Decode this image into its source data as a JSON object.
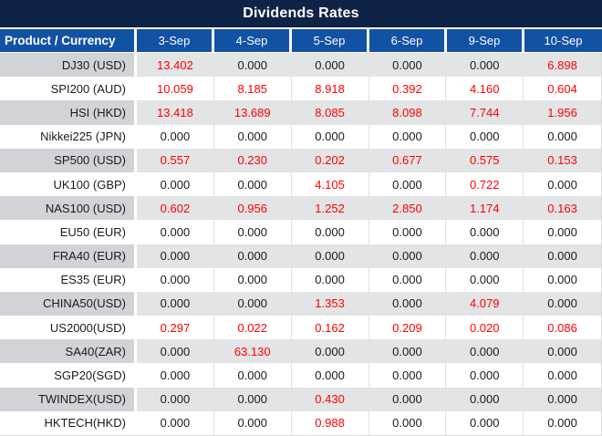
{
  "colors": {
    "title_bg": "#0f2347",
    "title_text": "#ffffff",
    "header_bg": "#1252a4",
    "header_text": "#ffffff",
    "row_bg": "#ffffff",
    "row_product_alt_bg": "#d1d3d6",
    "row_value_alt_bg": "#e3e4e6",
    "value_red": "#ff0000",
    "value_black": "#1a1a1a",
    "grid_line": "#e0e0e0",
    "edge_line": "#d9d9d9"
  },
  "chart_data": {
    "type": "table",
    "title": "Dividends Rates",
    "columns": [
      "Product / Currency",
      "3-Sep",
      "4-Sep",
      "5-Sep",
      "6-Sep",
      "9-Sep",
      "10-Sep"
    ],
    "rows": [
      {
        "product": "DJ30 (USD)",
        "values": [
          "13.402",
          "0.000",
          "0.000",
          "0.000",
          "0.000",
          "6.898"
        ],
        "red": [
          true,
          false,
          false,
          false,
          false,
          true
        ]
      },
      {
        "product": "SPI200 (AUD)",
        "values": [
          "10.059",
          "8.185",
          "8.918",
          "0.392",
          "4.160",
          "0.604"
        ],
        "red": [
          true,
          true,
          true,
          true,
          true,
          true
        ]
      },
      {
        "product": "HSI (HKD)",
        "values": [
          "13.418",
          "13.689",
          "8.085",
          "8.098",
          "7.744",
          "1.956"
        ],
        "red": [
          true,
          true,
          true,
          true,
          true,
          true
        ]
      },
      {
        "product": "Nikkei225 (JPN)",
        "values": [
          "0.000",
          "0.000",
          "0.000",
          "0.000",
          "0.000",
          "0.000"
        ],
        "red": [
          false,
          false,
          false,
          false,
          false,
          false
        ]
      },
      {
        "product": "SP500 (USD)",
        "values": [
          "0.557",
          "0.230",
          "0.202",
          "0.677",
          "0.575",
          "0.153"
        ],
        "red": [
          true,
          true,
          true,
          true,
          true,
          true
        ]
      },
      {
        "product": "UK100 (GBP)",
        "values": [
          "0.000",
          "0.000",
          "4.105",
          "0.000",
          "0.722",
          "0.000"
        ],
        "red": [
          false,
          false,
          true,
          false,
          true,
          false
        ]
      },
      {
        "product": "NAS100 (USD)",
        "values": [
          "0.602",
          "0.956",
          "1.252",
          "2.850",
          "1.174",
          "0.163"
        ],
        "red": [
          true,
          true,
          true,
          true,
          true,
          true
        ]
      },
      {
        "product": "EU50 (EUR)",
        "values": [
          "0.000",
          "0.000",
          "0.000",
          "0.000",
          "0.000",
          "0.000"
        ],
        "red": [
          false,
          false,
          false,
          false,
          false,
          false
        ]
      },
      {
        "product": "FRA40 (EUR)",
        "values": [
          "0.000",
          "0.000",
          "0.000",
          "0.000",
          "0.000",
          "0.000"
        ],
        "red": [
          false,
          false,
          false,
          false,
          false,
          false
        ]
      },
      {
        "product": "ES35 (EUR)",
        "values": [
          "0.000",
          "0.000",
          "0.000",
          "0.000",
          "0.000",
          "0.000"
        ],
        "red": [
          false,
          false,
          false,
          false,
          false,
          false
        ]
      },
      {
        "product": "CHINA50(USD)",
        "values": [
          "0.000",
          "0.000",
          "1.353",
          "0.000",
          "4.079",
          "0.000"
        ],
        "red": [
          false,
          false,
          true,
          false,
          true,
          false
        ]
      },
      {
        "product": "US2000(USD)",
        "values": [
          "0.297",
          "0.022",
          "0.162",
          "0.209",
          "0.020",
          "0.086"
        ],
        "red": [
          true,
          true,
          true,
          true,
          true,
          true
        ]
      },
      {
        "product": "SA40(ZAR)",
        "values": [
          "0.000",
          "63.130",
          "0.000",
          "0.000",
          "0.000",
          "0.000"
        ],
        "red": [
          false,
          true,
          false,
          false,
          false,
          false
        ]
      },
      {
        "product": "SGP20(SGD)",
        "values": [
          "0.000",
          "0.000",
          "0.000",
          "0.000",
          "0.000",
          "0.000"
        ],
        "red": [
          false,
          false,
          false,
          false,
          false,
          false
        ]
      },
      {
        "product": "TWINDEX(USD)",
        "values": [
          "0.000",
          "0.000",
          "0.430",
          "0.000",
          "0.000",
          "0.000"
        ],
        "red": [
          false,
          false,
          true,
          false,
          false,
          false
        ]
      },
      {
        "product": "HKTECH(HKD)",
        "values": [
          "0.000",
          "0.000",
          "0.988",
          "0.000",
          "0.000",
          "0.000"
        ],
        "red": [
          false,
          false,
          true,
          false,
          false,
          false
        ]
      }
    ]
  }
}
